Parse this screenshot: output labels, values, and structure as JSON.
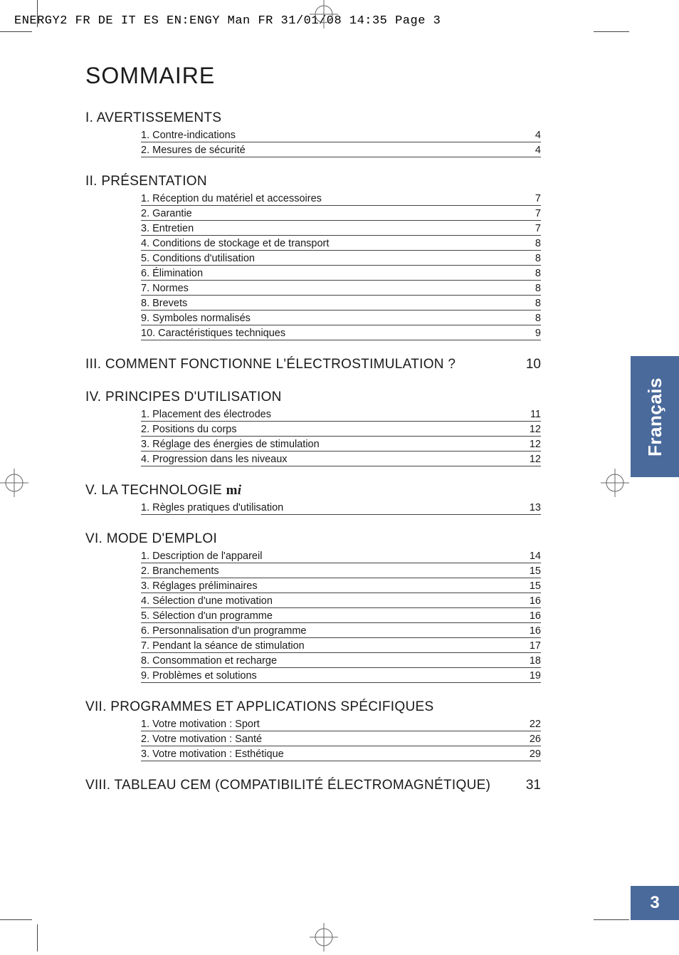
{
  "printHeader": "ENERGY2 FR DE IT ES EN:ENGY Man FR  31/01/08  14:35  Page 3",
  "mainTitle": "SOMMAIRE",
  "sideTab": {
    "language": "Français",
    "pageNumber": "3"
  },
  "sections": [
    {
      "heading": "I. AVERTISSEMENTS",
      "items": [
        {
          "label": "1. Contre-indications",
          "page": "4"
        },
        {
          "label": "2. Mesures de sécurité",
          "page": "4"
        }
      ]
    },
    {
      "heading": "II. PRÉSENTATION",
      "items": [
        {
          "label": "1. Réception du matériel et accessoires",
          "page": "7"
        },
        {
          "label": "2. Garantie",
          "page": "7"
        },
        {
          "label": "3. Entretien",
          "page": "7"
        },
        {
          "label": "4. Conditions de stockage et de transport",
          "page": "8"
        },
        {
          "label": "5. Conditions d'utilisation",
          "page": "8"
        },
        {
          "label": "6. Élimination",
          "page": "8"
        },
        {
          "label": "7. Normes",
          "page": "8"
        },
        {
          "label": "8. Brevets",
          "page": "8"
        },
        {
          "label": "9. Symboles normalisés",
          "page": "8"
        },
        {
          "label": "10. Caractéristiques techniques",
          "page": "9"
        }
      ]
    },
    {
      "heading": "III. COMMENT FONCTIONNE L'ÉLECTROSTIMULATION ?",
      "headingPage": "10",
      "items": []
    },
    {
      "heading": "IV. PRINCIPES D'UTILISATION",
      "items": [
        {
          "label": "1. Placement des électrodes",
          "page": "11"
        },
        {
          "label": "2. Positions du corps",
          "page": "12"
        },
        {
          "label": "3. Réglage des énergies de stimulation",
          "page": "12"
        },
        {
          "label": "4. Progression dans les niveaux",
          "page": "12"
        }
      ]
    },
    {
      "heading": "V. LA TECHNOLOGIE ",
      "headingSuffixMi": true,
      "items": [
        {
          "label": "1. Règles pratiques d'utilisation",
          "page": "13"
        }
      ]
    },
    {
      "heading": "VI. MODE D'EMPLOI",
      "items": [
        {
          "label": "1. Description de l'appareil",
          "page": "14"
        },
        {
          "label": "2. Branchements",
          "page": "15"
        },
        {
          "label": "3. Réglages préliminaires",
          "page": "15"
        },
        {
          "label": "4. Sélection d'une motivation",
          "page": "16"
        },
        {
          "label": "5. Sélection d'un programme",
          "page": "16"
        },
        {
          "label": "6. Personnalisation d'un programme",
          "page": "16"
        },
        {
          "label": "7. Pendant la séance de stimulation",
          "page": "17"
        },
        {
          "label": "8. Consommation et recharge",
          "page": "18"
        },
        {
          "label": "9. Problèmes et solutions",
          "page": "19"
        }
      ]
    },
    {
      "heading": "VII. PROGRAMMES ET APPLICATIONS SPÉCIFIQUES",
      "items": [
        {
          "label": "1. Votre motivation : Sport",
          "page": "22"
        },
        {
          "label": "2. Votre motivation : Santé",
          "page": "26"
        },
        {
          "label": "3. Votre motivation : Esthétique",
          "page": "29"
        }
      ]
    },
    {
      "heading": "VIII. TABLEAU CEM (COMPATIBILITÉ ÉLECTROMAGNÉTIQUE)",
      "headingPage": "31",
      "items": []
    }
  ]
}
